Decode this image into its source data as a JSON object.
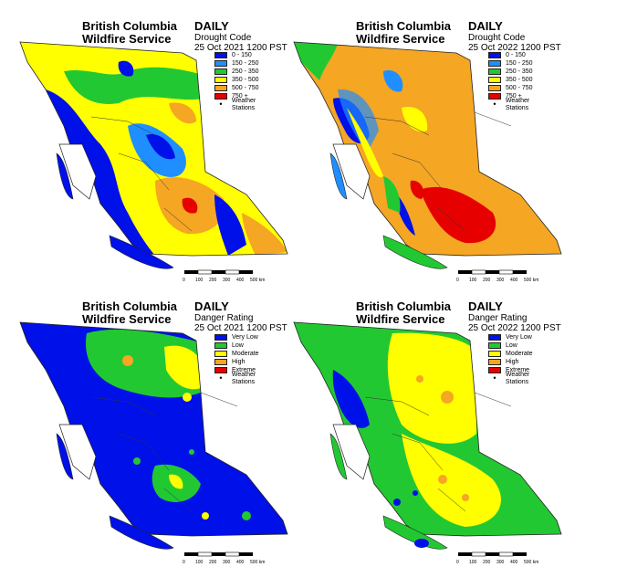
{
  "panels": [
    {
      "id": "dc-2021",
      "org_line1": "British Columbia",
      "org_line2": "Wildfire Service",
      "frequency": "DAILY",
      "product": "Drought Code",
      "timestamp": "25 Oct 2021 1200 PST",
      "legend": [
        {
          "label": "0 - 150",
          "color": "#0010e8"
        },
        {
          "label": "150 - 250",
          "color": "#1f8fff"
        },
        {
          "label": "250 - 350",
          "color": "#22c832"
        },
        {
          "label": "350 - 500",
          "color": "#ffff00"
        },
        {
          "label": "500 - 750",
          "color": "#f5a623"
        },
        {
          "label": "750 +",
          "color": "#e60000"
        }
      ],
      "stations_label": "Weather Stations"
    },
    {
      "id": "dc-2022",
      "org_line1": "British Columbia",
      "org_line2": "Wildfire Service",
      "frequency": "DAILY",
      "product": "Drought Code",
      "timestamp": "25 Oct 2022 1200 PST",
      "legend": [
        {
          "label": "0 - 150",
          "color": "#0010e8"
        },
        {
          "label": "150 - 250",
          "color": "#1f8fff"
        },
        {
          "label": "250 - 350",
          "color": "#22c832"
        },
        {
          "label": "350 - 500",
          "color": "#ffff00"
        },
        {
          "label": "500 - 750",
          "color": "#f5a623"
        },
        {
          "label": "750 +",
          "color": "#e60000"
        }
      ],
      "stations_label": "Weather Stations"
    },
    {
      "id": "dr-2021",
      "org_line1": "British Columbia",
      "org_line2": "Wildfire Service",
      "frequency": "DAILY",
      "product": "Danger Rating",
      "timestamp": "25 Oct 2021 1200 PST",
      "legend": [
        {
          "label": "Very Low",
          "color": "#0010e8"
        },
        {
          "label": "Low",
          "color": "#22c832"
        },
        {
          "label": "Moderate",
          "color": "#ffff00"
        },
        {
          "label": "High",
          "color": "#f5a623"
        },
        {
          "label": "Extreme",
          "color": "#e60000"
        }
      ],
      "stations_label": "Weather Stations"
    },
    {
      "id": "dr-2022",
      "org_line1": "British Columbia",
      "org_line2": "Wildfire Service",
      "frequency": "DAILY",
      "product": "Danger Rating",
      "timestamp": "25 Oct 2022 1200 PST",
      "legend": [
        {
          "label": "Very Low",
          "color": "#0010e8"
        },
        {
          "label": "Low",
          "color": "#22c832"
        },
        {
          "label": "Moderate",
          "color": "#ffff00"
        },
        {
          "label": "High",
          "color": "#f5a623"
        },
        {
          "label": "Extreme",
          "color": "#e60000"
        }
      ],
      "stations_label": "Weather Stations"
    }
  ],
  "scale": {
    "ticks": [
      "0",
      "100",
      "200",
      "300",
      "400",
      "500 km"
    ]
  }
}
